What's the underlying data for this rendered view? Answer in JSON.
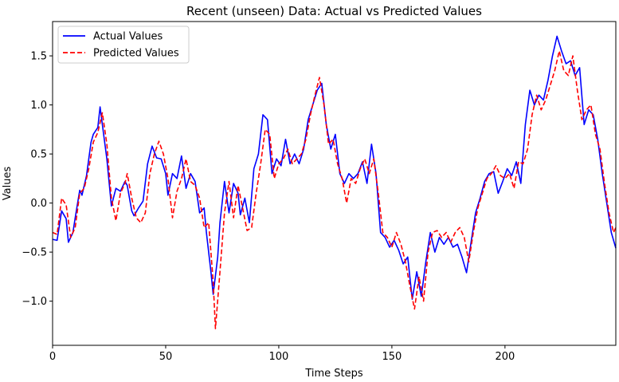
{
  "chart_data": {
    "type": "line",
    "title": "Recent (unseen) Data: Actual vs Predicted Values",
    "xlabel": "Time Steps",
    "ylabel": "Values",
    "xlim": [
      0,
      249
    ],
    "ylim": [
      -1.45,
      1.85
    ],
    "xticks": [
      0,
      50,
      100,
      150,
      200
    ],
    "yticks": [
      -1.0,
      -0.5,
      0.0,
      0.5,
      1.0,
      1.5
    ],
    "xtick_labels": [
      "0",
      "50",
      "100",
      "150",
      "200"
    ],
    "ytick_labels": [
      "−1.0",
      "−0.5",
      "0.0",
      "0.5",
      "1.0",
      "1.5"
    ],
    "legend_position": "top-left",
    "series": [
      {
        "name": "Actual Values",
        "color": "#0000ff",
        "style": "solid",
        "points": [
          [
            0,
            -0.37
          ],
          [
            2,
            -0.38
          ],
          [
            4,
            -0.08
          ],
          [
            6,
            -0.16
          ],
          [
            7,
            -0.4
          ],
          [
            9,
            -0.3
          ],
          [
            10,
            -0.15
          ],
          [
            12,
            0.13
          ],
          [
            13,
            0.08
          ],
          [
            15,
            0.28
          ],
          [
            17,
            0.62
          ],
          [
            18,
            0.7
          ],
          [
            20,
            0.77
          ],
          [
            21,
            0.98
          ],
          [
            22,
            0.8
          ],
          [
            24,
            0.45
          ],
          [
            26,
            -0.03
          ],
          [
            28,
            0.15
          ],
          [
            30,
            0.12
          ],
          [
            32,
            0.22
          ],
          [
            33,
            0.18
          ],
          [
            35,
            -0.08
          ],
          [
            36,
            -0.13
          ],
          [
            38,
            -0.05
          ],
          [
            40,
            0.02
          ],
          [
            42,
            0.4
          ],
          [
            44,
            0.58
          ],
          [
            46,
            0.46
          ],
          [
            48,
            0.45
          ],
          [
            50,
            0.3
          ],
          [
            51,
            0.08
          ],
          [
            53,
            0.3
          ],
          [
            55,
            0.25
          ],
          [
            57,
            0.48
          ],
          [
            59,
            0.15
          ],
          [
            61,
            0.3
          ],
          [
            63,
            0.22
          ],
          [
            65,
            -0.1
          ],
          [
            67,
            -0.05
          ],
          [
            68,
            -0.3
          ],
          [
            70,
            -0.7
          ],
          [
            71,
            -0.93
          ],
          [
            73,
            -0.55
          ],
          [
            74,
            -0.2
          ],
          [
            76,
            0.22
          ],
          [
            78,
            -0.1
          ],
          [
            80,
            0.2
          ],
          [
            82,
            0.1
          ],
          [
            83,
            -0.12
          ],
          [
            85,
            0.05
          ],
          [
            87,
            -0.2
          ],
          [
            89,
            0.35
          ],
          [
            91,
            0.5
          ],
          [
            93,
            0.9
          ],
          [
            95,
            0.85
          ],
          [
            97,
            0.3
          ],
          [
            99,
            0.45
          ],
          [
            101,
            0.38
          ],
          [
            103,
            0.65
          ],
          [
            105,
            0.4
          ],
          [
            107,
            0.5
          ],
          [
            109,
            0.4
          ],
          [
            111,
            0.55
          ],
          [
            113,
            0.85
          ],
          [
            115,
            1.0
          ],
          [
            117,
            1.15
          ],
          [
            119,
            1.22
          ],
          [
            121,
            0.8
          ],
          [
            123,
            0.55
          ],
          [
            125,
            0.7
          ],
          [
            127,
            0.3
          ],
          [
            129,
            0.2
          ],
          [
            131,
            0.3
          ],
          [
            133,
            0.25
          ],
          [
            135,
            0.3
          ],
          [
            137,
            0.42
          ],
          [
            139,
            0.2
          ],
          [
            141,
            0.6
          ],
          [
            143,
            0.3
          ],
          [
            145,
            -0.3
          ],
          [
            147,
            -0.35
          ],
          [
            149,
            -0.45
          ],
          [
            151,
            -0.38
          ],
          [
            153,
            -0.48
          ],
          [
            155,
            -0.62
          ],
          [
            157,
            -0.55
          ],
          [
            159,
            -0.98
          ],
          [
            161,
            -0.7
          ],
          [
            163,
            -0.95
          ],
          [
            165,
            -0.6
          ],
          [
            167,
            -0.3
          ],
          [
            169,
            -0.5
          ],
          [
            171,
            -0.35
          ],
          [
            173,
            -0.42
          ],
          [
            175,
            -0.35
          ],
          [
            177,
            -0.45
          ],
          [
            179,
            -0.42
          ],
          [
            181,
            -0.55
          ],
          [
            183,
            -0.71
          ],
          [
            185,
            -0.4
          ],
          [
            187,
            -0.1
          ],
          [
            189,
            0.05
          ],
          [
            191,
            0.22
          ],
          [
            193,
            0.3
          ],
          [
            195,
            0.32
          ],
          [
            197,
            0.1
          ],
          [
            199,
            0.22
          ],
          [
            201,
            0.35
          ],
          [
            203,
            0.28
          ],
          [
            205,
            0.42
          ],
          [
            207,
            0.2
          ],
          [
            209,
            0.8
          ],
          [
            211,
            1.15
          ],
          [
            213,
            1.0
          ],
          [
            215,
            1.1
          ],
          [
            217,
            1.05
          ],
          [
            219,
            1.25
          ],
          [
            221,
            1.5
          ],
          [
            223,
            1.7
          ],
          [
            225,
            1.55
          ],
          [
            227,
            1.42
          ],
          [
            229,
            1.45
          ],
          [
            231,
            1.3
          ],
          [
            233,
            1.38
          ],
          [
            235,
            0.8
          ],
          [
            237,
            0.95
          ],
          [
            239,
            0.9
          ],
          [
            241,
            0.65
          ],
          [
            243,
            0.3
          ],
          [
            245,
            0.0
          ],
          [
            247,
            -0.3
          ],
          [
            249,
            -0.46
          ]
        ]
      },
      {
        "name": "Predicted Values",
        "color": "#ff0000",
        "style": "dashed",
        "points": [
          [
            0,
            -0.3
          ],
          [
            2,
            -0.32
          ],
          [
            4,
            0.05
          ],
          [
            6,
            -0.02
          ],
          [
            8,
            -0.35
          ],
          [
            10,
            -0.25
          ],
          [
            12,
            0.1
          ],
          [
            14,
            0.15
          ],
          [
            16,
            0.35
          ],
          [
            18,
            0.62
          ],
          [
            20,
            0.72
          ],
          [
            22,
            0.92
          ],
          [
            24,
            0.6
          ],
          [
            26,
            0.05
          ],
          [
            28,
            -0.18
          ],
          [
            30,
            0.1
          ],
          [
            32,
            0.2
          ],
          [
            33,
            0.3
          ],
          [
            35,
            0.05
          ],
          [
            37,
            -0.15
          ],
          [
            39,
            -0.2
          ],
          [
            41,
            -0.1
          ],
          [
            43,
            0.3
          ],
          [
            45,
            0.5
          ],
          [
            47,
            0.63
          ],
          [
            49,
            0.5
          ],
          [
            51,
            0.25
          ],
          [
            53,
            -0.15
          ],
          [
            55,
            0.12
          ],
          [
            57,
            0.25
          ],
          [
            59,
            0.45
          ],
          [
            61,
            0.22
          ],
          [
            63,
            0.18
          ],
          [
            65,
            0.05
          ],
          [
            67,
            -0.25
          ],
          [
            69,
            -0.2
          ],
          [
            71,
            -0.8
          ],
          [
            72,
            -1.28
          ],
          [
            74,
            -0.7
          ],
          [
            76,
            -0.1
          ],
          [
            78,
            0.22
          ],
          [
            80,
            -0.15
          ],
          [
            82,
            0.18
          ],
          [
            84,
            -0.05
          ],
          [
            86,
            -0.28
          ],
          [
            88,
            -0.25
          ],
          [
            90,
            0.1
          ],
          [
            92,
            0.4
          ],
          [
            94,
            0.75
          ],
          [
            96,
            0.7
          ],
          [
            98,
            0.25
          ],
          [
            100,
            0.4
          ],
          [
            102,
            0.45
          ],
          [
            104,
            0.55
          ],
          [
            106,
            0.4
          ],
          [
            108,
            0.45
          ],
          [
            110,
            0.5
          ],
          [
            112,
            0.65
          ],
          [
            114,
            0.9
          ],
          [
            116,
            1.1
          ],
          [
            118,
            1.28
          ],
          [
            120,
            1.0
          ],
          [
            122,
            0.6
          ],
          [
            124,
            0.65
          ],
          [
            126,
            0.4
          ],
          [
            128,
            0.25
          ],
          [
            130,
            0.0
          ],
          [
            132,
            0.25
          ],
          [
            134,
            0.2
          ],
          [
            136,
            0.35
          ],
          [
            138,
            0.45
          ],
          [
            140,
            0.3
          ],
          [
            142,
            0.45
          ],
          [
            144,
            0.1
          ],
          [
            146,
            -0.3
          ],
          [
            148,
            -0.35
          ],
          [
            150,
            -0.45
          ],
          [
            152,
            -0.3
          ],
          [
            154,
            -0.42
          ],
          [
            156,
            -0.6
          ],
          [
            158,
            -0.85
          ],
          [
            160,
            -1.08
          ],
          [
            162,
            -0.75
          ],
          [
            164,
            -1.0
          ],
          [
            166,
            -0.5
          ],
          [
            168,
            -0.3
          ],
          [
            170,
            -0.28
          ],
          [
            172,
            -0.35
          ],
          [
            174,
            -0.3
          ],
          [
            176,
            -0.4
          ],
          [
            178,
            -0.3
          ],
          [
            180,
            -0.25
          ],
          [
            182,
            -0.35
          ],
          [
            184,
            -0.6
          ],
          [
            186,
            -0.3
          ],
          [
            188,
            -0.05
          ],
          [
            190,
            0.1
          ],
          [
            192,
            0.25
          ],
          [
            194,
            0.3
          ],
          [
            196,
            0.38
          ],
          [
            198,
            0.28
          ],
          [
            200,
            0.25
          ],
          [
            202,
            0.3
          ],
          [
            204,
            0.15
          ],
          [
            206,
            0.42
          ],
          [
            208,
            0.4
          ],
          [
            210,
            0.55
          ],
          [
            212,
            0.9
          ],
          [
            214,
            1.1
          ],
          [
            216,
            0.95
          ],
          [
            218,
            1.05
          ],
          [
            220,
            1.2
          ],
          [
            222,
            1.35
          ],
          [
            224,
            1.55
          ],
          [
            226,
            1.35
          ],
          [
            228,
            1.3
          ],
          [
            230,
            1.5
          ],
          [
            232,
            1.15
          ],
          [
            234,
            0.85
          ],
          [
            236,
            0.95
          ],
          [
            238,
            1.0
          ],
          [
            240,
            0.7
          ],
          [
            242,
            0.55
          ],
          [
            244,
            0.2
          ],
          [
            246,
            -0.1
          ],
          [
            248,
            -0.3
          ],
          [
            249,
            -0.25
          ]
        ]
      }
    ]
  }
}
